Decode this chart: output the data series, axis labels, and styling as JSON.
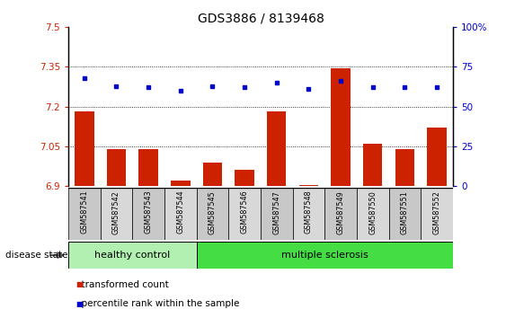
{
  "title": "GDS3886 / 8139468",
  "samples": [
    "GSM587541",
    "GSM587542",
    "GSM587543",
    "GSM587544",
    "GSM587545",
    "GSM587546",
    "GSM587547",
    "GSM587548",
    "GSM587549",
    "GSM587550",
    "GSM587551",
    "GSM587552"
  ],
  "red_values": [
    7.18,
    7.04,
    7.04,
    6.92,
    6.99,
    6.96,
    7.18,
    6.905,
    7.345,
    7.06,
    7.04,
    7.12
  ],
  "blue_values": [
    68,
    63,
    62,
    60,
    63,
    62,
    65,
    61,
    66,
    62,
    62,
    62
  ],
  "ylim_left": [
    6.9,
    7.5
  ],
  "ylim_right": [
    0,
    100
  ],
  "yticks_left": [
    6.9,
    7.05,
    7.2,
    7.35,
    7.5
  ],
  "yticks_right": [
    0,
    25,
    50,
    75,
    100
  ],
  "ytick_labels_left": [
    "6.9",
    "7.05",
    "7.2",
    "7.35",
    "7.5"
  ],
  "ytick_labels_right": [
    "0",
    "25",
    "50",
    "75",
    "100%"
  ],
  "n_healthy": 4,
  "healthy_label": "healthy control",
  "ms_label": "multiple sclerosis",
  "disease_state_label": "disease state",
  "legend_red": "transformed count",
  "legend_blue": "percentile rank within the sample",
  "bar_color": "#cc2200",
  "dot_color": "#0000cc",
  "healthy_bg": "#b2f0b2",
  "ms_bg": "#44dd44",
  "cell_bg_even": "#c8c8c8",
  "cell_bg_odd": "#d8d8d8",
  "dotted_ticks": [
    7.05,
    7.2,
    7.35
  ],
  "title_fontsize": 10,
  "tick_fontsize": 7.5,
  "label_fontsize": 8
}
